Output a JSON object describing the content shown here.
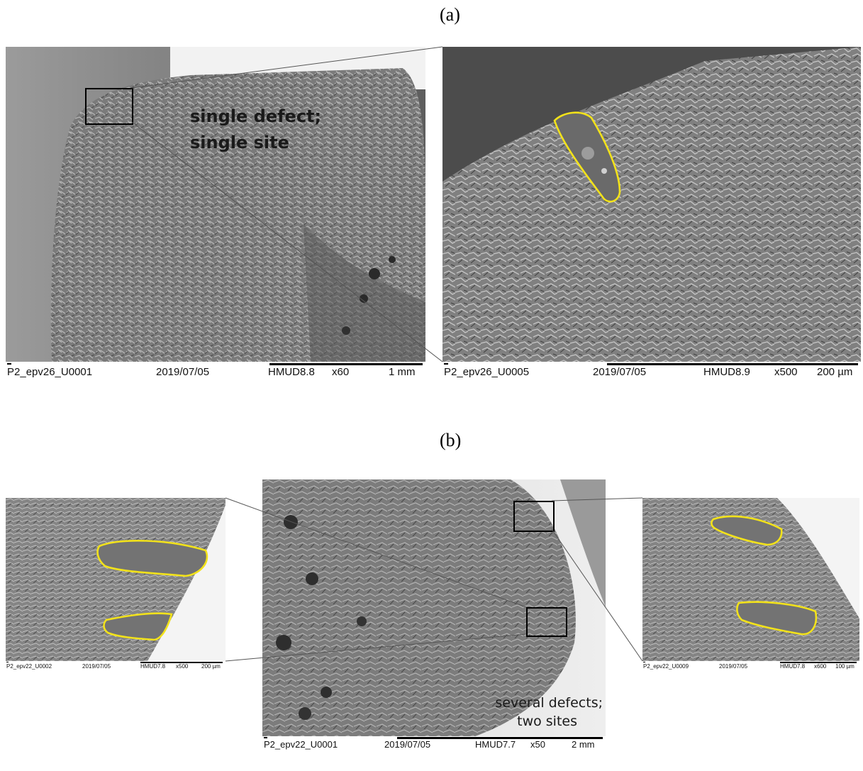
{
  "panel_a": {
    "letter": "(a)",
    "overview": {
      "label_line1": "single defect;",
      "label_line2": "single site",
      "info": {
        "id": "P2_epv26_U0001",
        "date": "2019/07/05",
        "detector": "HMUD8.8",
        "mag": "x60",
        "scale": "1 mm"
      }
    },
    "zoom": {
      "info": {
        "id": "P2_epv26_U0005",
        "date": "2019/07/05",
        "detector": "HMUD8.9",
        "mag": "x500",
        "scale": "200 µm"
      }
    }
  },
  "panel_b": {
    "letter": "(b)",
    "left_zoom": {
      "info": {
        "id": "P2_epv22_U0002",
        "date": "2019/07/05",
        "detector": "HMUD7.8",
        "mag": "x500",
        "scale": "200 µm"
      }
    },
    "overview": {
      "label_line1": "several defects;",
      "label_line2": "two sites",
      "info": {
        "id": "P2_epv22_U0001",
        "date": "2019/07/05",
        "detector": "HMUD7.7",
        "mag": "x50",
        "scale": "2 mm"
      }
    },
    "right_zoom": {
      "info": {
        "id": "P2_epv22_U0009",
        "date": "2019/07/05",
        "detector": "HMUD7.8",
        "mag": "x600",
        "scale": "100 µm"
      }
    }
  },
  "colors": {
    "defect_outline": "#f2e21a",
    "frame": "#000000",
    "connector": "#555555",
    "fracture": "#8c8c8c"
  }
}
